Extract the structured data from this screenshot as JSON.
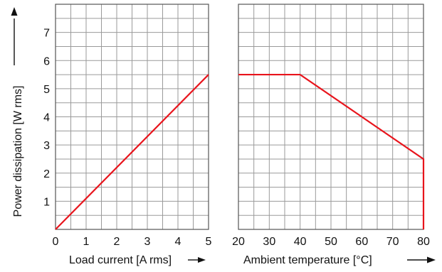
{
  "chart_data": [
    {
      "type": "line",
      "title": "",
      "xlabel": "Load current [A rms]",
      "ylabel": "Power dissipation [W rms]",
      "xlim": [
        0,
        5
      ],
      "ylim": [
        0,
        8
      ],
      "x_ticks": [
        "0",
        "1",
        "2",
        "3",
        "4",
        "5"
      ],
      "y_ticks": [
        "1",
        "2",
        "3",
        "4",
        "5",
        "6",
        "7"
      ],
      "grid": true,
      "series": [
        {
          "color": "#e8141c",
          "x": [
            0,
            5
          ],
          "y": [
            0,
            5.5
          ]
        }
      ]
    },
    {
      "type": "line",
      "title": "",
      "xlabel": "Ambient temperature [°C]",
      "ylabel": "",
      "xlim": [
        20,
        80
      ],
      "ylim": [
        0,
        8
      ],
      "x_ticks": [
        "20",
        "30",
        "40",
        "50",
        "60",
        "70",
        "80"
      ],
      "grid": true,
      "series": [
        {
          "color": "#e8141c",
          "x": [
            20,
            40,
            80,
            80
          ],
          "y": [
            5.5,
            5.5,
            2.5,
            0
          ]
        }
      ]
    }
  ]
}
